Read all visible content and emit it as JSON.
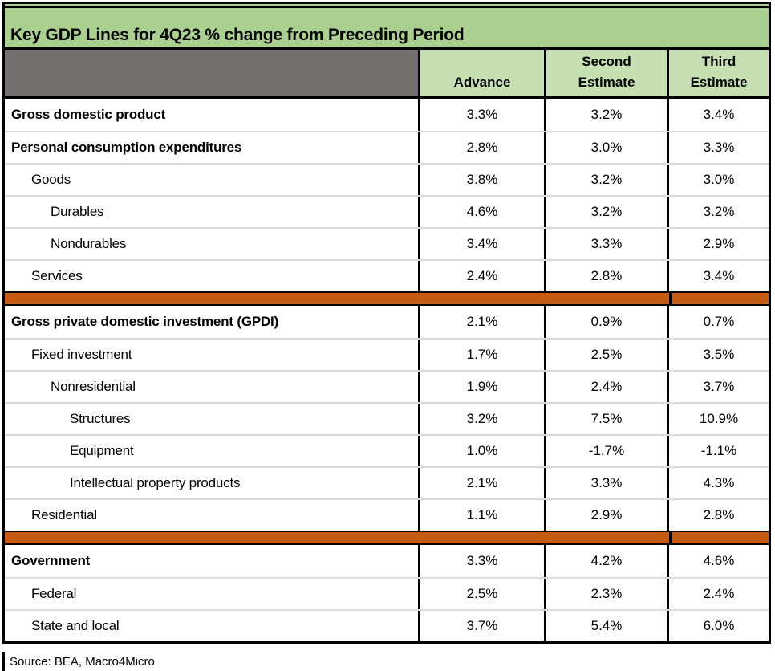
{
  "title": "Key GDP Lines for 4Q23 % change from Preceding Period",
  "header": {
    "advance": "Advance",
    "second": "Second\nEstimate",
    "third": "Third\nEstimate"
  },
  "sections": [
    {
      "rows": [
        {
          "label": "Gross domestic product",
          "indent": 0,
          "values": [
            "3.3%",
            "3.2%",
            "3.4%"
          ]
        },
        {
          "label": "Personal consumption expenditures",
          "indent": 0,
          "values": [
            "2.8%",
            "3.0%",
            "3.3%"
          ]
        },
        {
          "label": "Goods",
          "indent": 1,
          "values": [
            "3.8%",
            "3.2%",
            "3.0%"
          ]
        },
        {
          "label": "Durables",
          "indent": 2,
          "values": [
            "4.6%",
            "3.2%",
            "3.2%"
          ]
        },
        {
          "label": "Nondurables",
          "indent": 2,
          "values": [
            "3.4%",
            "3.3%",
            "2.9%"
          ]
        },
        {
          "label": "Services",
          "indent": 1,
          "values": [
            "2.4%",
            "2.8%",
            "3.4%"
          ]
        }
      ]
    },
    {
      "rows": [
        {
          "label": "Gross private domestic investment (GPDI)",
          "indent": 0,
          "values": [
            "2.1%",
            "0.9%",
            "0.7%"
          ]
        },
        {
          "label": "Fixed investment",
          "indent": 1,
          "values": [
            "1.7%",
            "2.5%",
            "3.5%"
          ]
        },
        {
          "label": "Nonresidential",
          "indent": 2,
          "values": [
            "1.9%",
            "2.4%",
            "3.7%"
          ]
        },
        {
          "label": "Structures",
          "indent": 3,
          "values": [
            "3.2%",
            "7.5%",
            "10.9%"
          ]
        },
        {
          "label": "Equipment",
          "indent": 3,
          "values": [
            "1.0%",
            "-1.7%",
            "-1.1%"
          ]
        },
        {
          "label": "Intellectual property products",
          "indent": 3,
          "values": [
            "2.1%",
            "3.3%",
            "4.3%"
          ]
        },
        {
          "label": "Residential",
          "indent": 1,
          "values": [
            "1.1%",
            "2.9%",
            "2.8%"
          ]
        }
      ]
    },
    {
      "rows": [
        {
          "label": "Government",
          "indent": 0,
          "values": [
            "3.3%",
            "4.2%",
            "4.6%"
          ]
        },
        {
          "label": "Federal",
          "indent": 1,
          "values": [
            "2.5%",
            "2.3%",
            "2.4%"
          ]
        },
        {
          "label": "State and local",
          "indent": 1,
          "values": [
            "3.7%",
            "5.4%",
            "6.0%"
          ]
        }
      ]
    }
  ],
  "source": "Source: BEA, Macro4Micro",
  "colors": {
    "title_green": "#a9d08e",
    "header_green": "#c6e0b4",
    "corner_gray": "#747070",
    "divider_orange": "#c55a11",
    "row_separator": "#d9d9d9",
    "border_black": "#000000"
  },
  "chart_data": {
    "type": "table",
    "title": "Key GDP Lines for 4Q23 % change from Preceding Period",
    "columns": [
      "",
      "Advance",
      "Second Estimate",
      "Third Estimate"
    ],
    "unit": "%",
    "rows": [
      {
        "label": "Gross domestic product",
        "indent": 0,
        "values": [
          3.3,
          3.2,
          3.4
        ]
      },
      {
        "label": "Personal consumption expenditures",
        "indent": 0,
        "values": [
          2.8,
          3.0,
          3.3
        ]
      },
      {
        "label": "Goods",
        "indent": 1,
        "values": [
          3.8,
          3.2,
          3.0
        ]
      },
      {
        "label": "Durables",
        "indent": 2,
        "values": [
          4.6,
          3.2,
          3.2
        ]
      },
      {
        "label": "Nondurables",
        "indent": 2,
        "values": [
          3.4,
          3.3,
          2.9
        ]
      },
      {
        "label": "Services",
        "indent": 1,
        "values": [
          2.4,
          2.8,
          3.4
        ]
      },
      {
        "label": "Gross private domestic investment (GPDI)",
        "indent": 0,
        "values": [
          2.1,
          0.9,
          0.7
        ]
      },
      {
        "label": "Fixed investment",
        "indent": 1,
        "values": [
          1.7,
          2.5,
          3.5
        ]
      },
      {
        "label": "Nonresidential",
        "indent": 2,
        "values": [
          1.9,
          2.4,
          3.7
        ]
      },
      {
        "label": "Structures",
        "indent": 3,
        "values": [
          3.2,
          7.5,
          10.9
        ]
      },
      {
        "label": "Equipment",
        "indent": 3,
        "values": [
          1.0,
          -1.7,
          -1.1
        ]
      },
      {
        "label": "Intellectual property products",
        "indent": 3,
        "values": [
          2.1,
          3.3,
          4.3
        ]
      },
      {
        "label": "Residential",
        "indent": 1,
        "values": [
          1.1,
          2.9,
          2.8
        ]
      },
      {
        "label": "Government",
        "indent": 0,
        "values": [
          3.3,
          4.2,
          4.6
        ]
      },
      {
        "label": "Federal",
        "indent": 1,
        "values": [
          2.5,
          2.3,
          2.4
        ]
      },
      {
        "label": "State and local",
        "indent": 1,
        "values": [
          3.7,
          5.4,
          6.0
        ]
      }
    ],
    "source": "Source: BEA, Macro4Micro"
  }
}
